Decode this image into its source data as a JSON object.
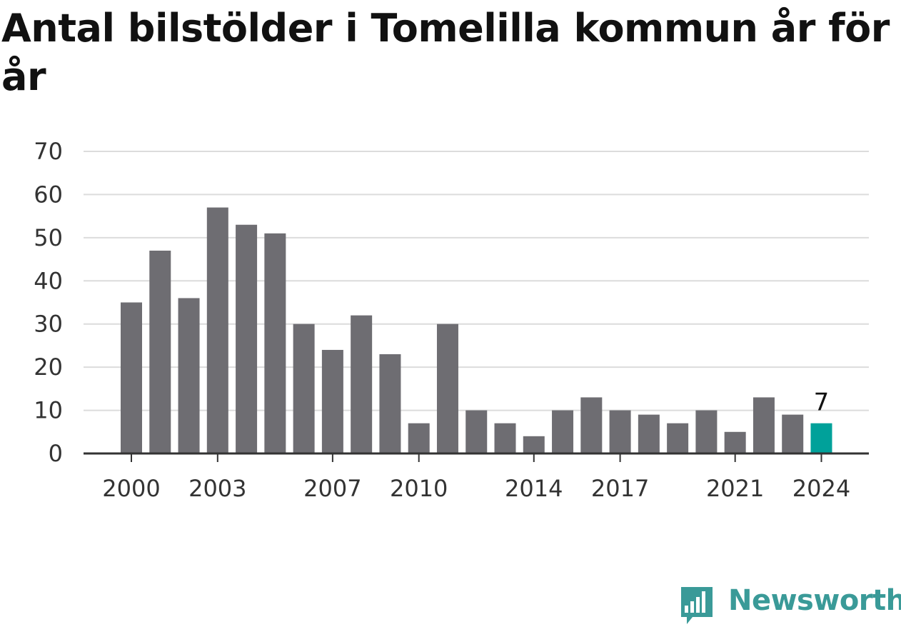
{
  "chart_data": {
    "type": "bar",
    "title": "Antal bilstölder i Tomelilla kommun år för år",
    "categories": [
      "2000",
      "2001",
      "2002",
      "2003",
      "2004",
      "2005",
      "2006",
      "2007",
      "2008",
      "2009",
      "2010",
      "2011",
      "2012",
      "2013",
      "2014",
      "2015",
      "2016",
      "2017",
      "2018",
      "2019",
      "2020",
      "2021",
      "2022",
      "2023",
      "2024"
    ],
    "values": [
      35,
      47,
      36,
      57,
      53,
      51,
      30,
      24,
      32,
      23,
      7,
      30,
      10,
      7,
      4,
      10,
      13,
      10,
      9,
      7,
      10,
      5,
      13,
      9,
      7
    ],
    "x_tick_labels": [
      "2000",
      "2003",
      "2007",
      "2010",
      "2014",
      "2017",
      "2021",
      "2024"
    ],
    "y_ticks": [
      0,
      10,
      20,
      30,
      40,
      50,
      60,
      70
    ],
    "ylim": [
      0,
      70
    ],
    "grid": true,
    "xlabel": "",
    "ylabel": "",
    "highlight": {
      "category": "2024",
      "label": "7",
      "color": "#00a19a"
    },
    "bar_color": "#6e6d72"
  },
  "brand": {
    "name": "Newsworthy",
    "color": "#3a9a98"
  }
}
